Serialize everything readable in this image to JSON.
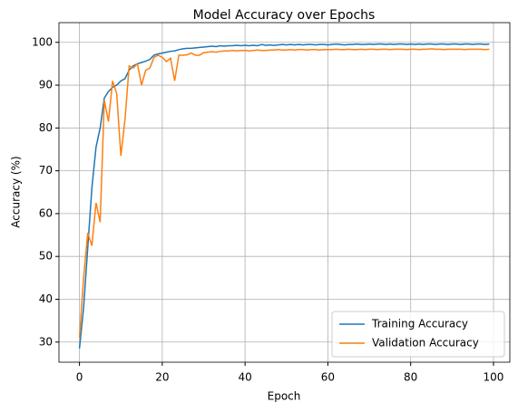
{
  "chart_data": {
    "type": "line",
    "title": "Model Accuracy over Epochs",
    "xlabel": "Epoch",
    "ylabel": "Accuracy (%)",
    "x": [
      0,
      1,
      2,
      3,
      4,
      5,
      6,
      7,
      8,
      9,
      10,
      11,
      12,
      13,
      14,
      15,
      16,
      17,
      18,
      19,
      20,
      21,
      22,
      23,
      24,
      25,
      26,
      27,
      28,
      29,
      30,
      31,
      32,
      33,
      34,
      35,
      36,
      37,
      38,
      39,
      40,
      41,
      42,
      43,
      44,
      45,
      46,
      47,
      48,
      49,
      50,
      51,
      52,
      53,
      54,
      55,
      56,
      57,
      58,
      59,
      60,
      61,
      62,
      63,
      64,
      65,
      66,
      67,
      68,
      69,
      70,
      71,
      72,
      73,
      74,
      75,
      76,
      77,
      78,
      79,
      80,
      81,
      82,
      83,
      84,
      85,
      86,
      87,
      88,
      89,
      90,
      91,
      92,
      93,
      94,
      95,
      96,
      97,
      98,
      99
    ],
    "series": [
      {
        "name": "Training Accuracy",
        "color": "#1f77b4",
        "values": [
          28.5,
          38,
          52,
          66,
          75.5,
          80,
          87,
          88.5,
          89.5,
          90,
          91,
          91.5,
          93.5,
          94.5,
          95,
          95.3,
          95.6,
          96,
          97,
          97.3,
          97.5,
          97.7,
          97.9,
          98,
          98.3,
          98.5,
          98.6,
          98.6,
          98.7,
          98.8,
          98.9,
          99.0,
          99.1,
          99.0,
          99.2,
          99.1,
          99.2,
          99.2,
          99.3,
          99.2,
          99.3,
          99.2,
          99.3,
          99.2,
          99.5,
          99.3,
          99.4,
          99.3,
          99.4,
          99.5,
          99.4,
          99.5,
          99.4,
          99.5,
          99.4,
          99.5,
          99.5,
          99.4,
          99.5,
          99.5,
          99.4,
          99.5,
          99.6,
          99.5,
          99.4,
          99.5,
          99.5,
          99.6,
          99.5,
          99.5,
          99.6,
          99.5,
          99.6,
          99.6,
          99.5,
          99.6,
          99.5,
          99.6,
          99.6,
          99.5,
          99.6,
          99.5,
          99.6,
          99.5,
          99.6,
          99.6,
          99.5,
          99.6,
          99.6,
          99.5,
          99.6,
          99.6,
          99.5,
          99.6,
          99.6,
          99.5,
          99.6,
          99.6,
          99.5,
          99.6
        ]
      },
      {
        "name": "Validation Accuracy",
        "color": "#ff7f0e",
        "values": [
          31,
          45,
          55.5,
          52.5,
          62.5,
          58,
          86.5,
          81.5,
          91,
          88,
          73.5,
          82,
          94.5,
          94,
          95,
          90,
          93.5,
          94,
          96.5,
          97,
          96.5,
          95.5,
          96.3,
          91,
          97,
          97,
          97.1,
          97.5,
          97,
          97,
          97.6,
          97.7,
          97.8,
          97.7,
          97.9,
          98.0,
          98.0,
          98.1,
          98.0,
          98.1,
          98.1,
          98.0,
          98.1,
          98.2,
          98.1,
          98.1,
          98.2,
          98.2,
          98.3,
          98.2,
          98.2,
          98.3,
          98.2,
          98.3,
          98.3,
          98.2,
          98.3,
          98.3,
          98.2,
          98.3,
          98.3,
          98.3,
          98.4,
          98.3,
          98.3,
          98.4,
          98.3,
          98.3,
          98.4,
          98.3,
          98.4,
          98.4,
          98.3,
          98.4,
          98.4,
          98.3,
          98.4,
          98.4,
          98.4,
          98.3,
          98.4,
          98.4,
          98.3,
          98.4,
          98.4,
          98.5,
          98.4,
          98.4,
          98.3,
          98.4,
          98.4,
          98.4,
          98.4,
          98.3,
          98.4,
          98.4,
          98.4,
          98.4,
          98.3,
          98.4
        ]
      }
    ],
    "xlim": [
      -4.95,
      103.95
    ],
    "ylim": [
      25.3,
      104.6
    ],
    "xticks": [
      0,
      20,
      40,
      60,
      80,
      100
    ],
    "yticks": [
      30,
      40,
      50,
      60,
      70,
      80,
      90,
      100
    ],
    "grid": true,
    "legend_loc": "lower right"
  }
}
